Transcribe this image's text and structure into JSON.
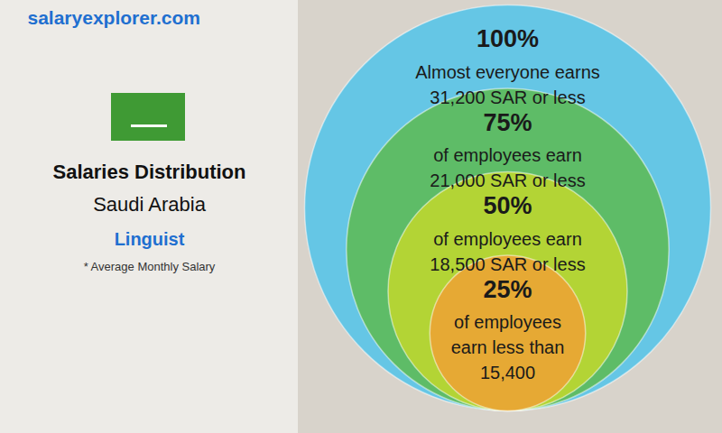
{
  "chart_data": {
    "type": "circles",
    "source": "salaryexplorer.com",
    "title": "Salaries Distribution",
    "subtitle": "Saudi Arabia",
    "job": "Linguist",
    "note": "* Average Monthly Salary",
    "values": [
      100,
      75,
      50,
      25
    ],
    "value_labels": [
      "100%",
      "75%",
      "50%",
      "25%"
    ],
    "texts": [
      [
        "Almost everyone earns",
        "31,200 SAR or less"
      ],
      [
        "of employees earn",
        "21,000 SAR or less"
      ],
      [
        "of employees earn",
        "18,500 SAR or less"
      ],
      [
        "of employees",
        "earn less than",
        "15,400"
      ]
    ],
    "colors": [
      "#4cc3ea",
      "#5db94a",
      "#c6d92b",
      "#f2a035"
    ]
  }
}
